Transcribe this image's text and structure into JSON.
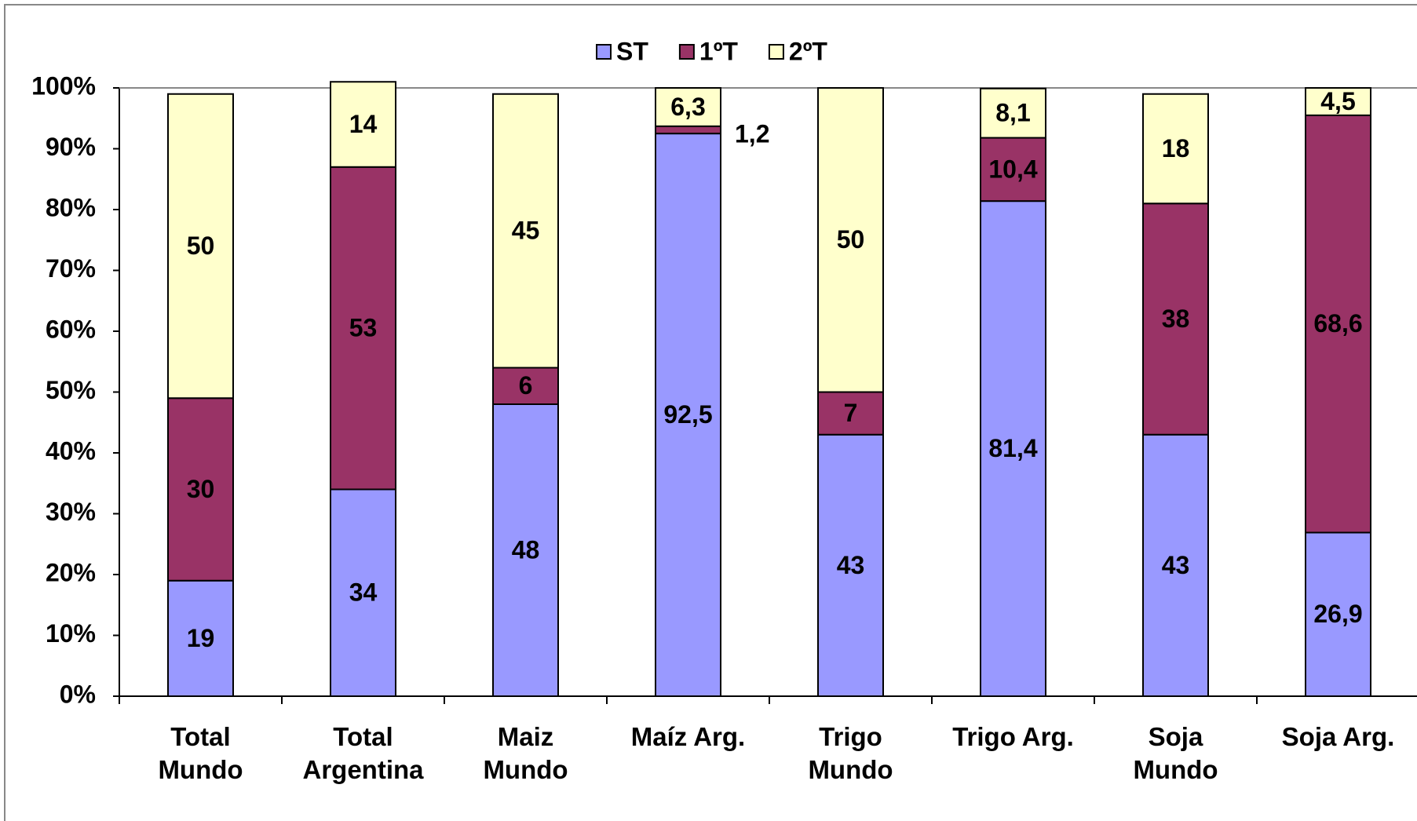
{
  "chart_data": {
    "type": "stacked_bar_100",
    "categories": [
      "Total\nMundo",
      "Total\nArgentina",
      "Maiz\nMundo",
      "Maíz Arg.",
      "Trigo\nMundo",
      "Trigo Arg.",
      "Soja\nMundo",
      "Soja Arg."
    ],
    "series": [
      {
        "name": "ST",
        "color": "#9999ff",
        "values": [
          19,
          34,
          48,
          92.5,
          43,
          81.4,
          43,
          26.9
        ],
        "value_labels": [
          "19",
          "34",
          "48",
          "92,5",
          "43",
          "81,4",
          "43",
          "26,9"
        ]
      },
      {
        "name": "1ºT",
        "color": "#993366",
        "values": [
          30,
          53,
          6,
          1.2,
          7,
          10.4,
          38,
          68.6
        ],
        "value_labels": [
          "30",
          "53",
          "6",
          "1,2",
          "7",
          "10,4",
          "38",
          "68,6"
        ]
      },
      {
        "name": "2ºT",
        "color": "#ffffcc",
        "values": [
          50,
          14,
          45,
          6.3,
          50,
          8.1,
          18,
          4.5
        ],
        "value_labels": [
          "50",
          "14",
          "45",
          "6,3",
          "50",
          "8,1",
          "18",
          "4,5"
        ]
      }
    ],
    "ylim": [
      0,
      100
    ],
    "yticks": [
      {
        "value": 0,
        "label": "0%"
      },
      {
        "value": 10,
        "label": "10%"
      },
      {
        "value": 20,
        "label": "20%"
      },
      {
        "value": 30,
        "label": "30%"
      },
      {
        "value": 40,
        "label": "40%"
      },
      {
        "value": 50,
        "label": "50%"
      },
      {
        "value": 60,
        "label": "60%"
      },
      {
        "value": 70,
        "label": "70%"
      },
      {
        "value": 80,
        "label": "80%"
      },
      {
        "value": 90,
        "label": "90%"
      },
      {
        "value": 100,
        "label": "100%"
      }
    ],
    "legend": "top"
  }
}
